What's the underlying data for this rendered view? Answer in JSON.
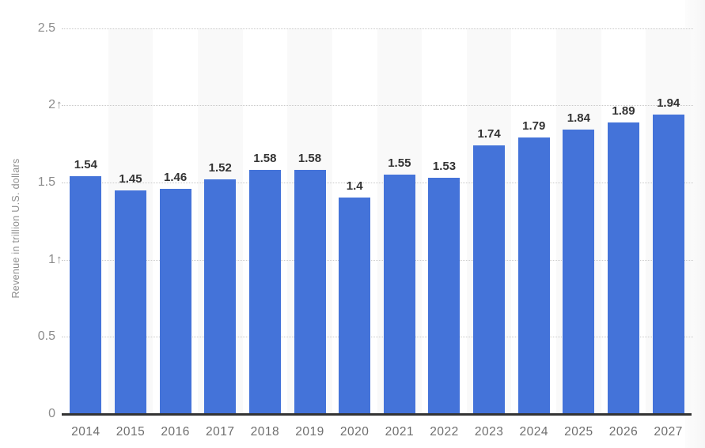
{
  "chart_data": {
    "type": "bar",
    "title": "",
    "xlabel": "",
    "ylabel": "Revenue in trillion U.S. dollars",
    "categories": [
      "2014",
      "2015",
      "2016",
      "2017",
      "2018",
      "2019",
      "2020",
      "2021",
      "2022",
      "2023",
      "2024",
      "2025",
      "2026",
      "2027"
    ],
    "values": [
      1.54,
      1.45,
      1.46,
      1.52,
      1.58,
      1.58,
      1.4,
      1.55,
      1.53,
      1.74,
      1.79,
      1.84,
      1.89,
      1.94
    ],
    "value_labels": [
      "1.54",
      "1.45",
      "1.46",
      "1.52",
      "1.58",
      "1.58",
      "1.4",
      "1.55",
      "1.53",
      "1.74",
      "1.79",
      "1.84",
      "1.89",
      "1.94"
    ],
    "ylim": [
      0,
      2.5
    ],
    "yticks": [
      {
        "value": 0,
        "label": "0",
        "arrow": false
      },
      {
        "value": 0.5,
        "label": "0.5",
        "arrow": false
      },
      {
        "value": 1,
        "label": "1",
        "arrow": true
      },
      {
        "value": 1.5,
        "label": "1.5",
        "arrow": false
      },
      {
        "value": 2,
        "label": "2",
        "arrow": true
      },
      {
        "value": 2.5,
        "label": "2.5",
        "arrow": false
      }
    ],
    "arrow_glyph": "↑",
    "grid": true,
    "legend_position": "none",
    "stripe_pattern": "alternate-columns-starting-white",
    "colors": {
      "bar": "#4473d9",
      "column_stripe": "#f9f9f9",
      "gridline": "#c9c9c9",
      "baseline": "#333333",
      "value_label": "#333333",
      "x_tick_label": "#6e6e6e",
      "y_tick_label": "#8c8c8c",
      "axis_title": "#8f8f8f"
    }
  }
}
